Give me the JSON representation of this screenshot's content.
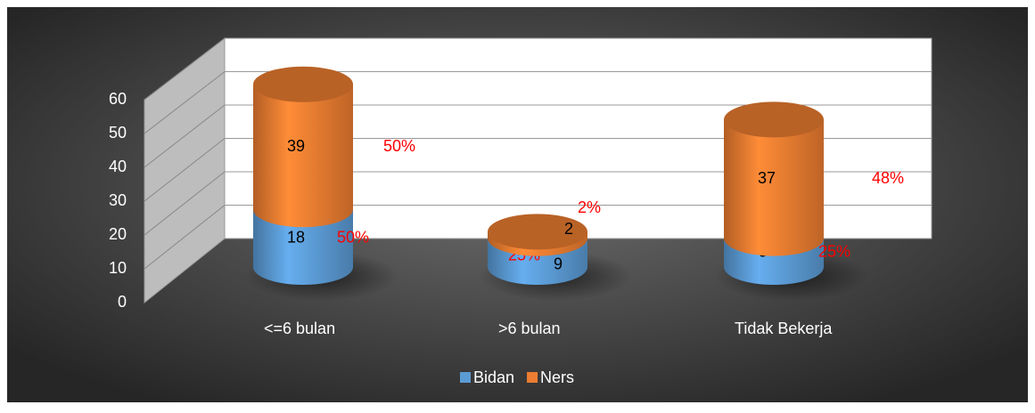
{
  "chart_data": {
    "type": "cylinder3d",
    "categories": [
      "<=6 bulan",
      ">6 bulan",
      "Tidak Bekerja"
    ],
    "series": [
      {
        "name": "Bidan",
        "color": "#5b9bd5",
        "values": [
          18,
          9,
          9
        ],
        "percent_labels": [
          "50%",
          "25%",
          "25%"
        ]
      },
      {
        "name": "Ners",
        "color": "#ed7d31",
        "values": [
          39,
          2,
          37
        ],
        "percent_labels": [
          "50%",
          "2%",
          "48%"
        ]
      }
    ],
    "ylim": [
      0,
      60
    ],
    "yticks": [
      0,
      10,
      20,
      30,
      40,
      50,
      60
    ],
    "grid": true,
    "legend": "bottom"
  }
}
